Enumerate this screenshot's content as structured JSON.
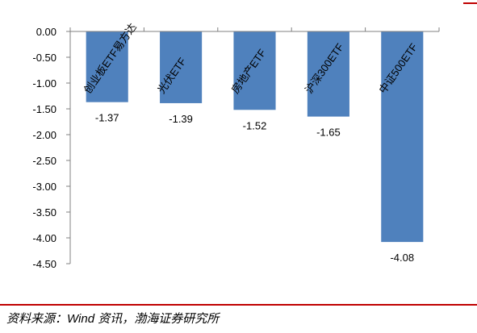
{
  "chart_data": {
    "type": "bar",
    "categories": [
      "创业板ETF易方达",
      "光伏ETF",
      "房地产ETF",
      "沪深300ETF",
      "中证500ETF"
    ],
    "values": [
      -1.37,
      -1.39,
      -1.52,
      -1.65,
      -4.08
    ],
    "value_labels": [
      "-1.37",
      "-1.39",
      "-1.52",
      "-1.65",
      "-4.08"
    ],
    "yticks": [
      "0.00",
      "-0.50",
      "-1.00",
      "-1.50",
      "-2.00",
      "-2.50",
      "-3.00",
      "-3.50",
      "-4.00",
      "-4.50"
    ],
    "ylim": [
      -4.5,
      0
    ],
    "grid": false,
    "legend": "none",
    "bar_color": "#4f81bd",
    "title": "",
    "xlabel": "",
    "ylabel": ""
  },
  "source": "资料来源：Wind 资讯，渤海证券研究所",
  "colors": {
    "accent_rule": "#c00000"
  }
}
